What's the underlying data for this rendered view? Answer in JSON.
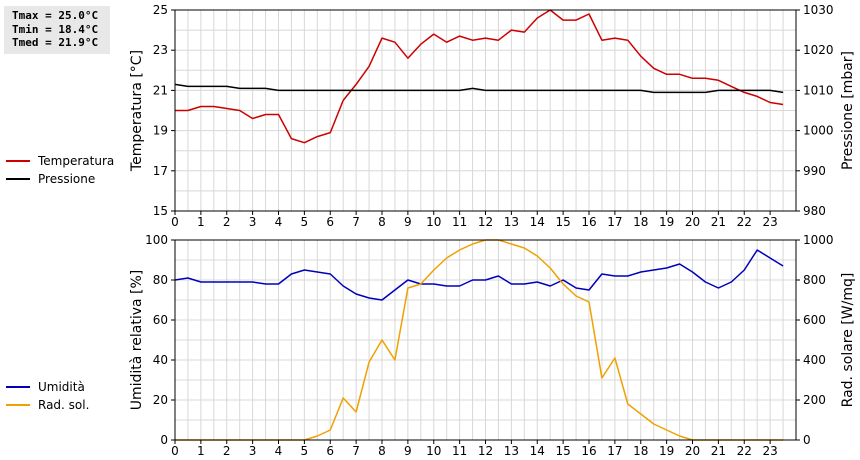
{
  "stats": {
    "tmax": "Tmax = 25.0°C",
    "tmin": "Tmin = 18.4°C",
    "tmed": "Tmed = 21.9°C"
  },
  "chart_data": [
    {
      "type": "line",
      "xlim": [
        0,
        24
      ],
      "x_ticks": [
        "0",
        "1",
        "2",
        "3",
        "4",
        "5",
        "6",
        "7",
        "8",
        "9",
        "10",
        "11",
        "12",
        "13",
        "14",
        "15",
        "16",
        "17",
        "18",
        "19",
        "20",
        "21",
        "22",
        "23"
      ],
      "ylabel_left": "Temperatura [°C]",
      "ylabel_right": "Pressione [mbar]",
      "ylim_left": [
        15,
        25
      ],
      "yticks_left": [
        "15",
        "17",
        "19",
        "21",
        "23",
        "25"
      ],
      "ylim_right": [
        980,
        1030
      ],
      "yticks_right": [
        "980",
        "990",
        "1000",
        "1010",
        "1020",
        "1030"
      ],
      "grid": true,
      "legend_position": "left",
      "series": [
        {
          "name": "Temperatura",
          "axis": "left",
          "color": "#cc0000",
          "x": [
            0,
            0.5,
            1,
            1.5,
            2,
            2.5,
            3,
            3.5,
            4,
            4.5,
            5,
            5.5,
            6,
            6.5,
            7,
            7.5,
            8,
            8.5,
            9,
            9.5,
            10,
            10.5,
            11,
            11.5,
            12,
            12.5,
            13,
            13.5,
            14,
            14.5,
            15,
            15.5,
            16,
            16.5,
            17,
            17.5,
            18,
            18.5,
            19,
            19.5,
            20,
            20.5,
            21,
            21.5,
            22,
            22.5,
            23,
            23.5
          ],
          "values": [
            20.0,
            20.0,
            20.2,
            20.2,
            20.1,
            20.0,
            19.6,
            19.8,
            19.8,
            18.6,
            18.4,
            18.7,
            18.9,
            20.5,
            21.3,
            22.2,
            23.6,
            23.4,
            22.6,
            23.3,
            23.8,
            23.4,
            23.7,
            23.5,
            23.6,
            23.5,
            24.0,
            23.9,
            24.6,
            25.0,
            24.5,
            24.5,
            24.8,
            23.5,
            23.6,
            23.5,
            22.7,
            22.1,
            21.8,
            21.8,
            21.6,
            21.6,
            21.5,
            21.2,
            20.9,
            20.7,
            20.4,
            20.3
          ]
        },
        {
          "name": "Pressione",
          "axis": "right",
          "color": "#000000",
          "x": [
            0,
            0.5,
            1,
            1.5,
            2,
            2.5,
            3,
            3.5,
            4,
            4.5,
            5,
            5.5,
            6,
            6.5,
            7,
            7.5,
            8,
            8.5,
            9,
            9.5,
            10,
            10.5,
            11,
            11.5,
            12,
            12.5,
            13,
            13.5,
            14,
            14.5,
            15,
            15.5,
            16,
            16.5,
            17,
            17.5,
            18,
            18.5,
            19,
            19.5,
            20,
            20.5,
            21,
            21.5,
            22,
            22.5,
            23,
            23.5
          ],
          "values": [
            1011.5,
            1011,
            1011,
            1011,
            1011,
            1010.5,
            1010.5,
            1010.5,
            1010,
            1010,
            1010,
            1010,
            1010,
            1010,
            1010,
            1010,
            1010,
            1010,
            1010,
            1010,
            1010,
            1010,
            1010,
            1010.5,
            1010,
            1010,
            1010,
            1010,
            1010,
            1010,
            1010,
            1010,
            1010,
            1010,
            1010,
            1010,
            1010,
            1009.5,
            1009.5,
            1009.5,
            1009.5,
            1009.5,
            1010,
            1010,
            1010,
            1010,
            1010,
            1009.5
          ]
        }
      ]
    },
    {
      "type": "line",
      "xlim": [
        0,
        24
      ],
      "x_ticks": [
        "0",
        "1",
        "2",
        "3",
        "4",
        "5",
        "6",
        "7",
        "8",
        "9",
        "10",
        "11",
        "12",
        "13",
        "14",
        "15",
        "16",
        "17",
        "18",
        "19",
        "20",
        "21",
        "22",
        "23"
      ],
      "ylabel_left": "Umidità relativa [%]",
      "ylabel_right": "Rad. solare [W/mq]",
      "ylim_left": [
        0,
        100
      ],
      "yticks_left": [
        "0",
        "20",
        "40",
        "60",
        "80",
        "100"
      ],
      "ylim_right": [
        0,
        1000
      ],
      "yticks_right": [
        "0",
        "200",
        "400",
        "600",
        "800",
        "1000"
      ],
      "grid": true,
      "legend_position": "left",
      "series": [
        {
          "name": "Umidità",
          "axis": "left",
          "color": "#0000bb",
          "x": [
            0,
            0.5,
            1,
            1.5,
            2,
            2.5,
            3,
            3.5,
            4,
            4.5,
            5,
            5.5,
            6,
            6.5,
            7,
            7.5,
            8,
            8.5,
            9,
            9.5,
            10,
            10.5,
            11,
            11.5,
            12,
            12.5,
            13,
            13.5,
            14,
            14.5,
            15,
            15.5,
            16,
            16.5,
            17,
            17.5,
            18,
            18.5,
            19,
            19.5,
            20,
            20.5,
            21,
            21.5,
            22,
            22.5,
            23,
            23.5
          ],
          "values": [
            80,
            81,
            79,
            79,
            79,
            79,
            79,
            78,
            78,
            83,
            85,
            84,
            83,
            77,
            73,
            71,
            70,
            75,
            80,
            78,
            78,
            77,
            77,
            80,
            80,
            82,
            78,
            78,
            79,
            77,
            80,
            76,
            75,
            83,
            82,
            82,
            84,
            85,
            86,
            88,
            84,
            79,
            76,
            79,
            85,
            95,
            91,
            87
          ]
        },
        {
          "name": "Rad. sol.",
          "axis": "right",
          "color": "#f0a000",
          "x": [
            0,
            0.5,
            1,
            1.5,
            2,
            2.5,
            3,
            3.5,
            4,
            4.5,
            5,
            5.5,
            6,
            6.5,
            7,
            7.5,
            8,
            8.5,
            9,
            9.5,
            10,
            10.5,
            11,
            11.5,
            12,
            12.5,
            13,
            13.5,
            14,
            14.5,
            15,
            15.5,
            16,
            16.5,
            17,
            17.5,
            18,
            18.5,
            19,
            19.5,
            20,
            20.5,
            21,
            21.5,
            22,
            22.5,
            23,
            23.5
          ],
          "values": [
            0,
            0,
            0,
            0,
            0,
            0,
            0,
            0,
            0,
            0,
            0,
            20,
            50,
            210,
            140,
            390,
            500,
            400,
            760,
            780,
            850,
            910,
            950,
            980,
            1000,
            1000,
            980,
            960,
            920,
            860,
            780,
            720,
            690,
            310,
            410,
            180,
            130,
            80,
            50,
            20,
            0,
            0,
            0,
            0,
            0,
            0,
            0,
            0
          ]
        }
      ]
    }
  ]
}
